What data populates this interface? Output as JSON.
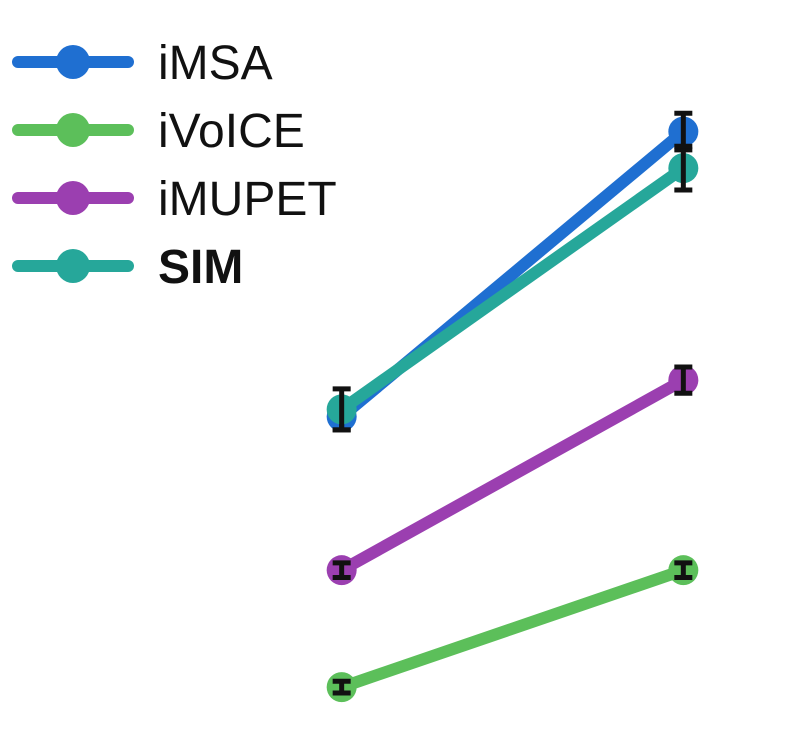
{
  "chart_data": {
    "type": "line",
    "title": "",
    "xlabel": "",
    "ylabel": "",
    "x": [
      1,
      2
    ],
    "xlim": [
      0,
      2.4
    ],
    "ylim": [
      0,
      1
    ],
    "grid": false,
    "legend_position": "top-left",
    "series": [
      {
        "name": "iMSA",
        "color": "#1f6fd1",
        "bold": false,
        "values": [
          0.43,
          0.82
        ],
        "errors": [
          0.018,
          0.025
        ]
      },
      {
        "name": "iVoICE",
        "color": "#5cbf5a",
        "bold": false,
        "values": [
          0.06,
          0.22
        ],
        "errors": [
          0.008,
          0.01
        ]
      },
      {
        "name": "iMUPET",
        "color": "#9b3fb0",
        "bold": false,
        "values": [
          0.22,
          0.48
        ],
        "errors": [
          0.01,
          0.018
        ]
      },
      {
        "name": "SIM",
        "color": "#26a79a",
        "bold": true,
        "values": [
          0.44,
          0.77
        ],
        "errors": [
          0.028,
          0.03
        ]
      }
    ]
  }
}
